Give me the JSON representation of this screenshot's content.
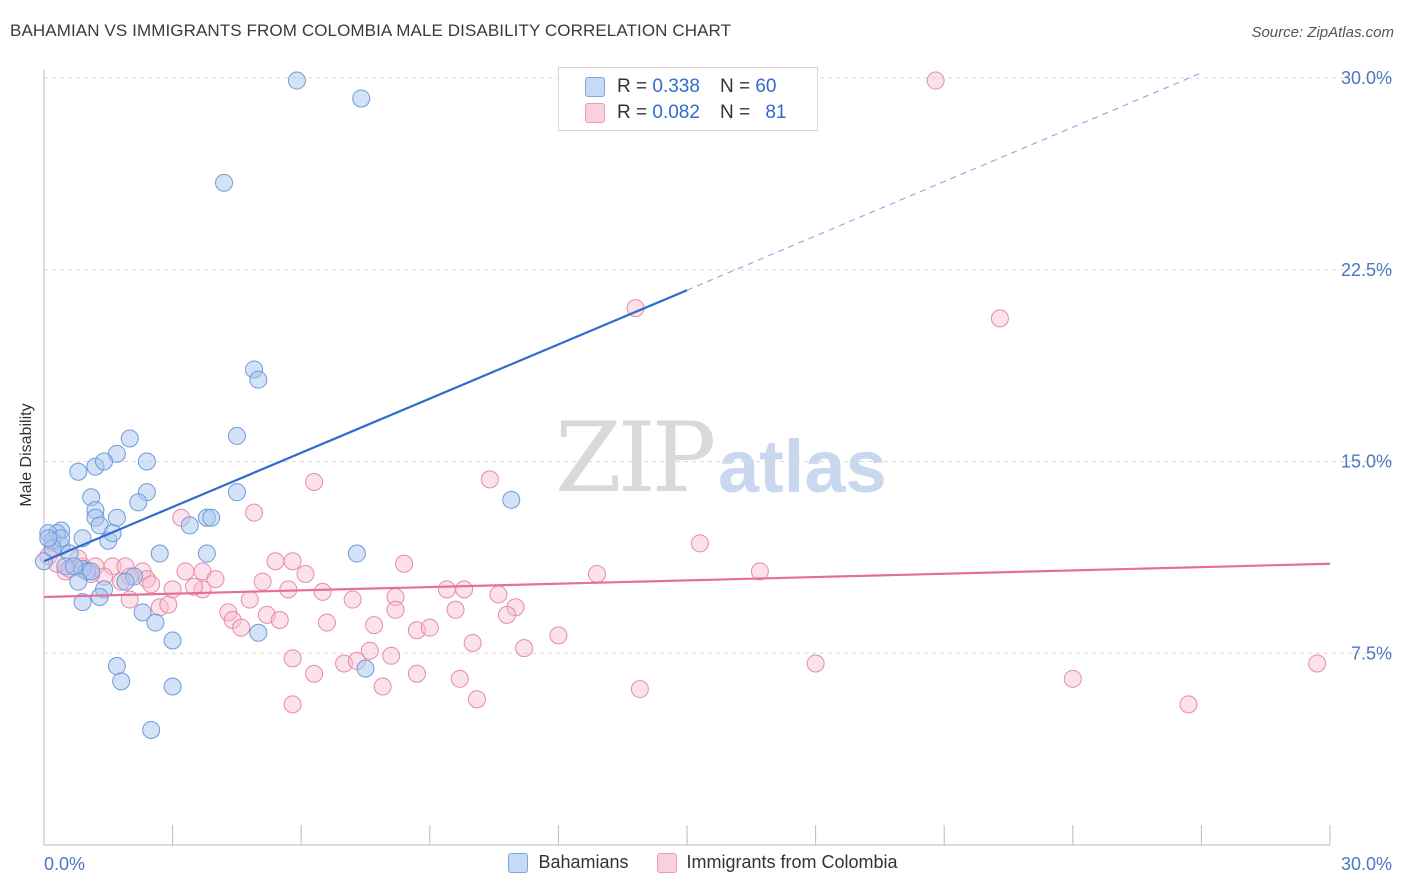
{
  "title": "BAHAMIAN VS IMMIGRANTS FROM COLOMBIA MALE DISABILITY CORRELATION CHART",
  "source": "Source: ZipAtlas.com",
  "watermark_zip": "ZIP",
  "watermark_atlas": "atlas",
  "legend": {
    "r_label": "R =",
    "n_label": "N =",
    "series1_r": "0.338",
    "series1_n": "60",
    "series2_r": "0.082",
    "series2_n": "81"
  },
  "bottom_legend": {
    "series1": "Bahamians",
    "series2": "Immigrants from Colombia"
  },
  "colors": {
    "blue_fill": "#a9c6ef",
    "blue_stroke": "#6e9bd9",
    "blue_line": "#2f6ccf",
    "pink_fill": "#f6bcd0",
    "pink_stroke": "#e88aaa",
    "pink_line": "#e46f98",
    "tick_text": "#4a78c2"
  },
  "chart_data": {
    "type": "scatter",
    "title": "BAHAMIAN VS IMMIGRANTS FROM COLOMBIA MALE DISABILITY CORRELATION CHART",
    "xlabel": "",
    "ylabel": "Male Disability",
    "xlim": [
      0,
      30
    ],
    "ylim": [
      0,
      30
    ],
    "x_tick_labels": [
      "0.0%",
      "30.0%"
    ],
    "y_ticks": [
      7.5,
      15.0,
      22.5,
      30.0
    ],
    "y_tick_labels": [
      "7.5%",
      "15.0%",
      "22.5%",
      "30.0%"
    ],
    "grid": true,
    "series": [
      {
        "name": "Bahamians",
        "color": "#a9c6ef",
        "trend": {
          "x0": 0,
          "y0": 11.1,
          "x1": 15,
          "y1": 21.7,
          "dashed_to_x": 27,
          "dashed_to_y": 30.2
        },
        "points": [
          [
            5.9,
            29.9
          ],
          [
            7.4,
            29.2
          ],
          [
            4.2,
            25.9
          ],
          [
            4.9,
            18.6
          ],
          [
            5.0,
            18.2
          ],
          [
            4.5,
            16.0
          ],
          [
            2.0,
            15.9
          ],
          [
            1.7,
            15.3
          ],
          [
            2.4,
            15.0
          ],
          [
            0.8,
            14.6
          ],
          [
            1.2,
            14.8
          ],
          [
            1.4,
            15.0
          ],
          [
            4.5,
            13.8
          ],
          [
            2.4,
            13.8
          ],
          [
            1.1,
            13.6
          ],
          [
            2.2,
            13.4
          ],
          [
            1.2,
            13.1
          ],
          [
            1.2,
            12.8
          ],
          [
            1.7,
            12.8
          ],
          [
            3.8,
            12.8
          ],
          [
            3.9,
            12.8
          ],
          [
            3.4,
            12.5
          ],
          [
            1.3,
            12.5
          ],
          [
            0.4,
            12.3
          ],
          [
            0.3,
            12.2
          ],
          [
            0.1,
            12.2
          ],
          [
            0.2,
            11.9
          ],
          [
            0.9,
            12.0
          ],
          [
            0.4,
            11.7
          ],
          [
            1.5,
            11.9
          ],
          [
            1.6,
            12.2
          ],
          [
            0.4,
            12.0
          ],
          [
            0.6,
            11.4
          ],
          [
            2.7,
            11.4
          ],
          [
            3.8,
            11.4
          ],
          [
            7.3,
            11.4
          ],
          [
            10.9,
            13.5
          ],
          [
            0.0,
            11.1
          ],
          [
            0.5,
            10.9
          ],
          [
            0.9,
            10.8
          ],
          [
            1.0,
            10.7
          ],
          [
            1.1,
            10.7
          ],
          [
            2.1,
            10.5
          ],
          [
            0.8,
            10.3
          ],
          [
            1.4,
            10.0
          ],
          [
            1.9,
            10.3
          ],
          [
            0.9,
            9.5
          ],
          [
            1.3,
            9.7
          ],
          [
            2.3,
            9.1
          ],
          [
            2.6,
            8.7
          ],
          [
            5.0,
            8.3
          ],
          [
            3.0,
            8.0
          ],
          [
            1.7,
            7.0
          ],
          [
            1.8,
            6.4
          ],
          [
            3.0,
            6.2
          ],
          [
            7.5,
            6.9
          ],
          [
            2.5,
            4.5
          ],
          [
            0.2,
            11.6
          ],
          [
            0.7,
            10.9
          ],
          [
            0.1,
            12.0
          ]
        ]
      },
      {
        "name": "Immigrants from Colombia",
        "color": "#f6bcd0",
        "trend": {
          "x0": 0,
          "y0": 9.7,
          "x1": 30,
          "y1": 11.0
        },
        "points": [
          [
            20.8,
            29.9
          ],
          [
            13.8,
            21.0
          ],
          [
            22.3,
            20.6
          ],
          [
            10.4,
            14.3
          ],
          [
            6.3,
            14.2
          ],
          [
            4.9,
            13.0
          ],
          [
            3.2,
            12.8
          ],
          [
            15.3,
            11.8
          ],
          [
            0.2,
            11.8
          ],
          [
            0.1,
            11.3
          ],
          [
            5.4,
            11.1
          ],
          [
            5.8,
            11.1
          ],
          [
            8.4,
            11.0
          ],
          [
            0.5,
            10.7
          ],
          [
            0.9,
            10.9
          ],
          [
            1.2,
            10.9
          ],
          [
            1.6,
            10.9
          ],
          [
            1.9,
            10.9
          ],
          [
            2.3,
            10.7
          ],
          [
            3.3,
            10.7
          ],
          [
            3.7,
            10.7
          ],
          [
            6.1,
            10.6
          ],
          [
            12.9,
            10.6
          ],
          [
            16.7,
            10.7
          ],
          [
            1.4,
            10.5
          ],
          [
            2.0,
            10.5
          ],
          [
            2.4,
            10.4
          ],
          [
            4.0,
            10.4
          ],
          [
            5.1,
            10.3
          ],
          [
            9.4,
            10.0
          ],
          [
            9.8,
            10.0
          ],
          [
            3.0,
            10.0
          ],
          [
            3.7,
            10.0
          ],
          [
            5.7,
            10.0
          ],
          [
            10.6,
            9.8
          ],
          [
            8.2,
            9.7
          ],
          [
            2.0,
            9.6
          ],
          [
            7.2,
            9.6
          ],
          [
            2.7,
            9.3
          ],
          [
            8.2,
            9.2
          ],
          [
            9.6,
            9.2
          ],
          [
            11.0,
            9.3
          ],
          [
            4.3,
            9.1
          ],
          [
            5.2,
            9.0
          ],
          [
            10.8,
            9.0
          ],
          [
            4.4,
            8.8
          ],
          [
            5.5,
            8.8
          ],
          [
            6.6,
            8.7
          ],
          [
            7.7,
            8.6
          ],
          [
            4.6,
            8.5
          ],
          [
            8.7,
            8.4
          ],
          [
            9.0,
            8.5
          ],
          [
            12.0,
            8.2
          ],
          [
            10.0,
            7.9
          ],
          [
            11.2,
            7.7
          ],
          [
            7.6,
            7.6
          ],
          [
            8.1,
            7.4
          ],
          [
            5.8,
            7.3
          ],
          [
            7.0,
            7.1
          ],
          [
            7.3,
            7.2
          ],
          [
            18.0,
            7.1
          ],
          [
            29.7,
            7.1
          ],
          [
            6.3,
            6.7
          ],
          [
            8.7,
            6.7
          ],
          [
            9.7,
            6.5
          ],
          [
            7.9,
            6.2
          ],
          [
            13.9,
            6.1
          ],
          [
            24.0,
            6.5
          ],
          [
            26.7,
            5.5
          ],
          [
            5.8,
            5.5
          ],
          [
            10.1,
            5.7
          ],
          [
            0.3,
            11.0
          ],
          [
            0.6,
            10.8
          ],
          [
            1.1,
            10.6
          ],
          [
            2.5,
            10.2
          ],
          [
            3.5,
            10.1
          ],
          [
            4.8,
            9.6
          ],
          [
            6.5,
            9.9
          ],
          [
            0.8,
            11.2
          ],
          [
            1.8,
            10.3
          ],
          [
            2.9,
            9.4
          ]
        ]
      }
    ]
  }
}
